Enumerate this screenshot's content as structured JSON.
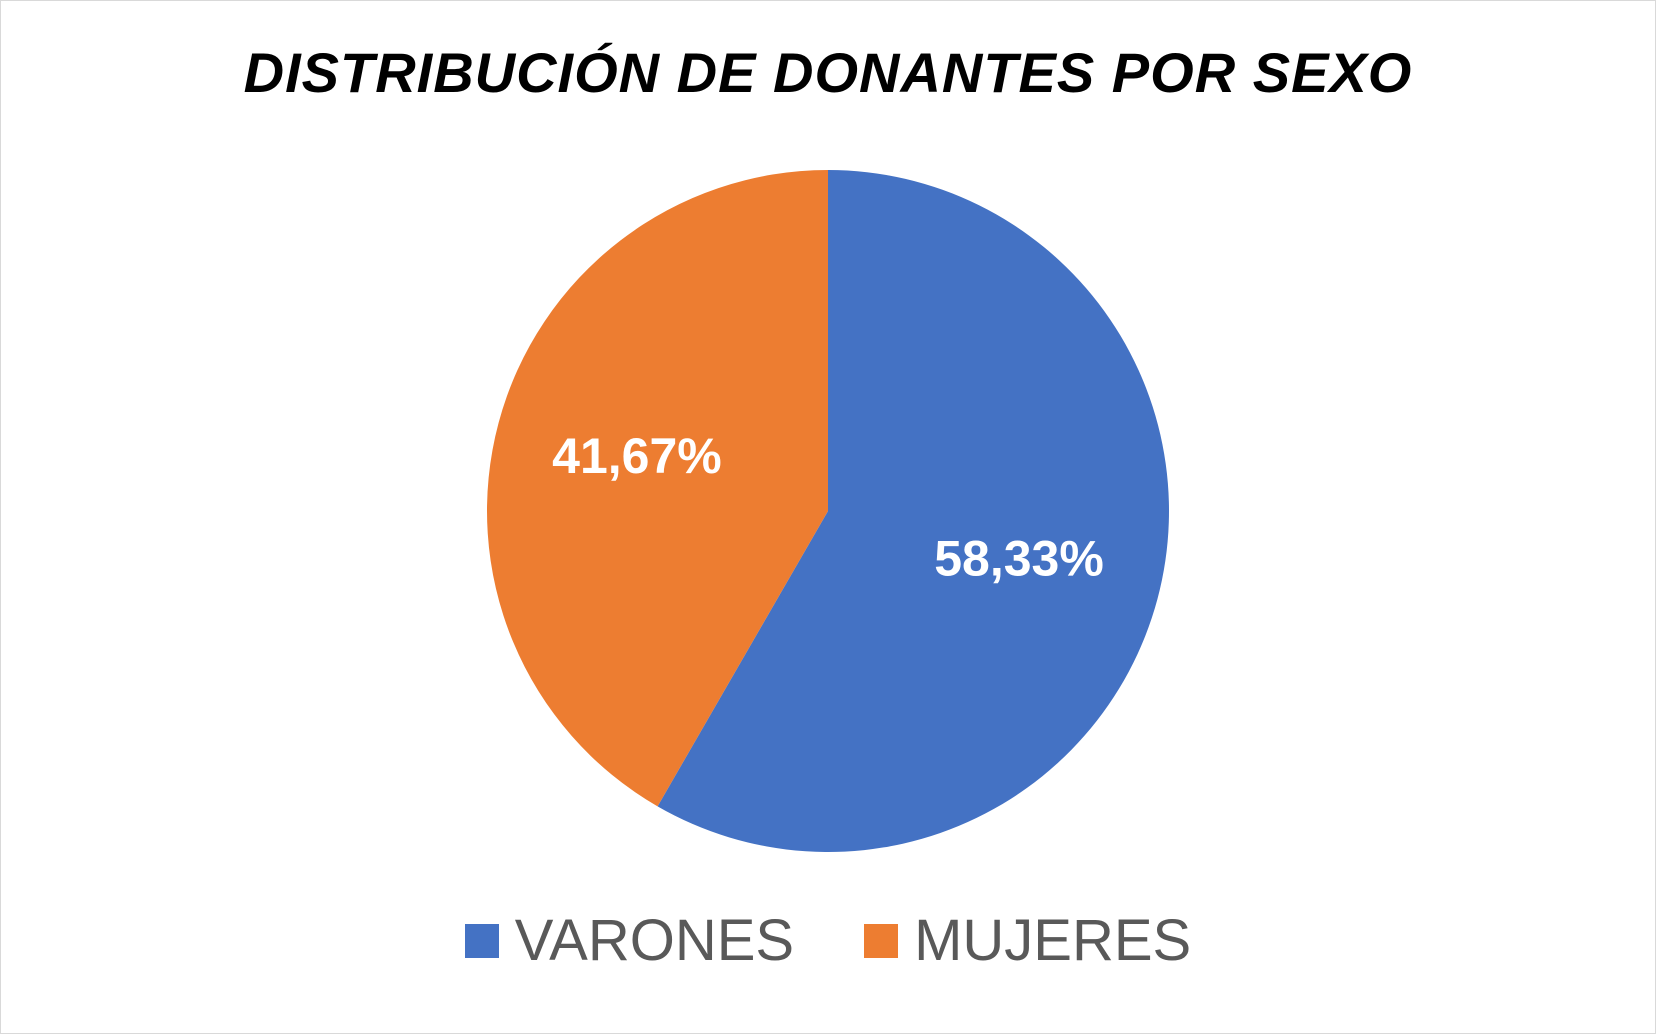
{
  "chart_data": {
    "type": "pie",
    "title": "DISTRIBUCIÓN DE DONANTES POR SEXO",
    "categories": [
      "VARONES",
      "MUJERES"
    ],
    "values": [
      58.33,
      41.67
    ],
    "value_labels": [
      "58,33%",
      "41,67%"
    ],
    "colors": [
      "#4472c4",
      "#ed7d31"
    ],
    "start_angle_deg": 0,
    "direction": "clockwise",
    "legend_position": "bottom"
  }
}
